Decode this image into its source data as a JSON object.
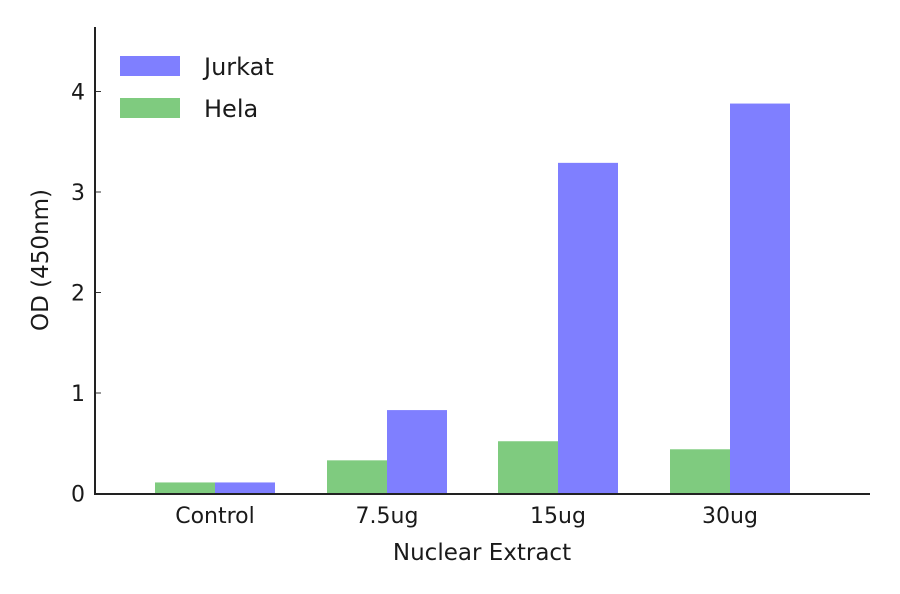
{
  "chart_data": {
    "type": "bar",
    "title": "",
    "xlabel": "Nuclear Extract",
    "ylabel": "OD (450nm)",
    "categories": [
      "Control",
      "7.5ug",
      "15ug",
      "30ug"
    ],
    "series": [
      {
        "name": "Hela",
        "color": "#7fcb7f",
        "values": [
          0.11,
          0.33,
          0.52,
          0.44
        ]
      },
      {
        "name": "Jurkat",
        "color": "#7f7fff",
        "values": [
          0.11,
          0.83,
          3.29,
          3.88
        ]
      }
    ],
    "legend_order": [
      "Jurkat",
      "Hela"
    ],
    "legend_position": "upper left",
    "ylim": [
      0,
      4.64
    ],
    "yticks": [
      0,
      1,
      2,
      3,
      4
    ],
    "grid": false
  }
}
